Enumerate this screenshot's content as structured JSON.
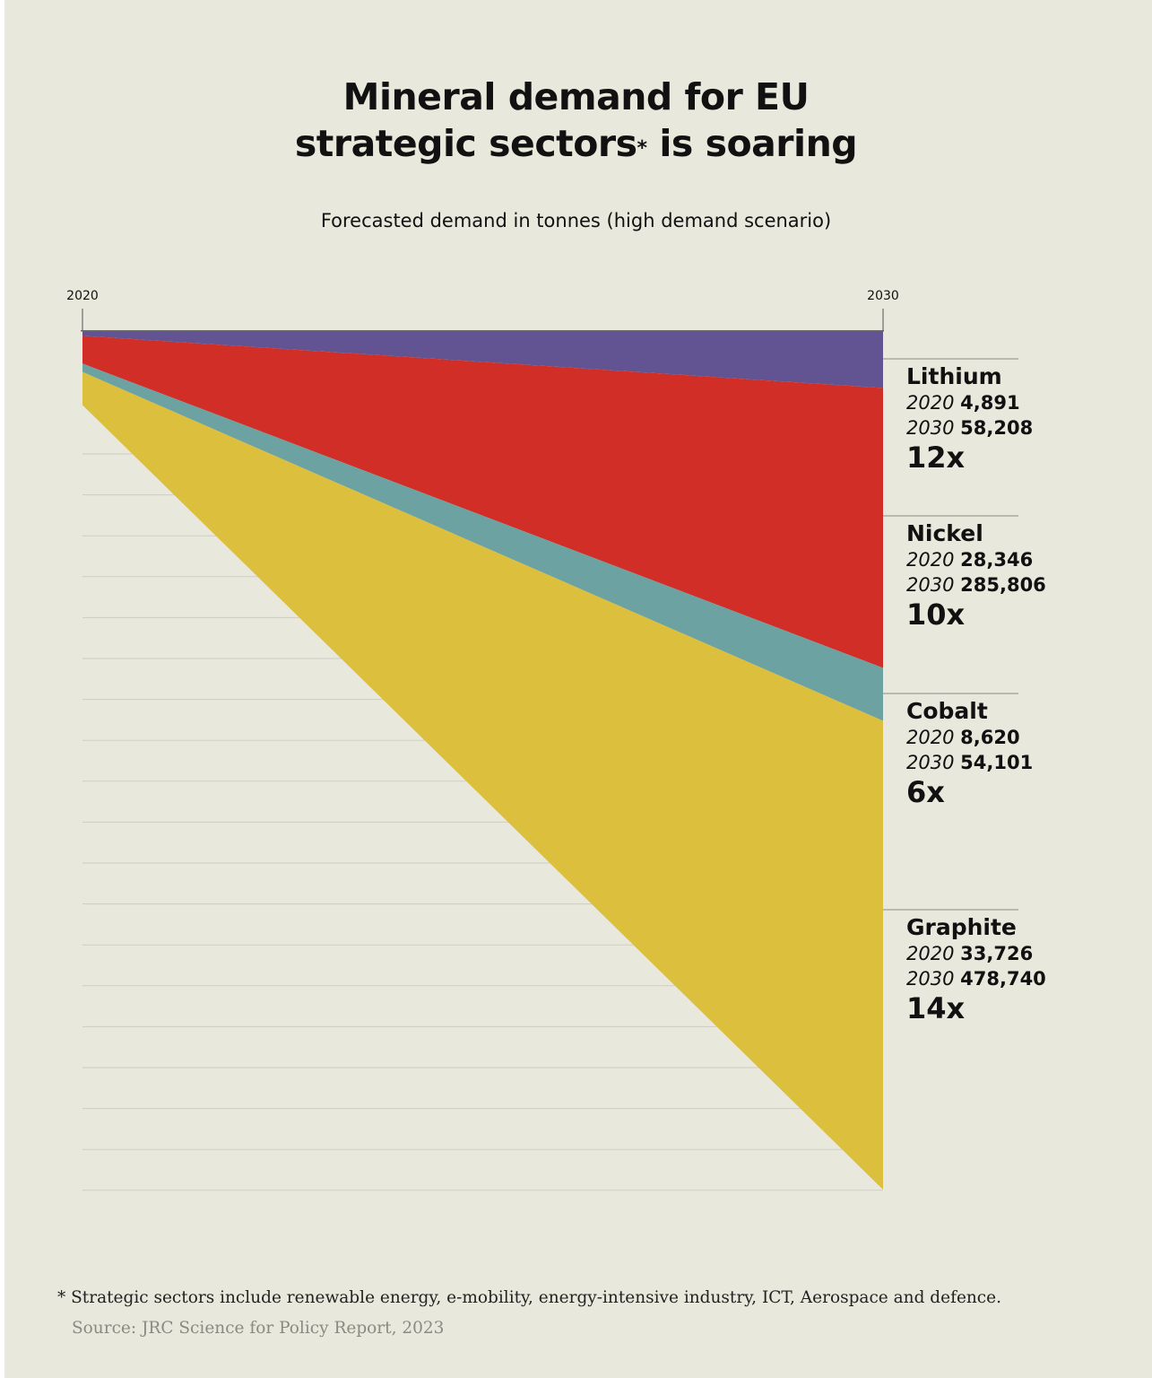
{
  "title_line1": "Mineral demand for EU",
  "title_line2_main": "strategic sectors",
  "title_asterisk": "*",
  "title_line2_end": " is soaring",
  "subtitle": "Forecasted demand in tonnes (high demand scenario)",
  "footnote": "* Strategic sectors include renewable energy, e-mobility, energy-intensive industry, ICT, Aerospace and defence.",
  "source": "Source: JRC Science for Policy Report, 2023",
  "colors": {
    "lithium": "#625493",
    "nickel": "#d12e27",
    "cobalt": "#6ca3a2",
    "graphite": "#ddbf3e",
    "background": "#e9e8dc",
    "gridline": "#cfcdc2"
  },
  "chart_data": {
    "type": "area",
    "title": "Mineral demand for EU strategic sectors* is soaring",
    "subtitle": "Forecasted demand in tonnes (high demand scenario)",
    "x": [
      "2020",
      "2030"
    ],
    "stacking": "stacked, downward from top",
    "ylim": [
      0,
      876855
    ],
    "series": [
      {
        "name": "Lithium",
        "values": [
          4891,
          58208
        ],
        "label_2020": "2020",
        "value_2020": "4,891",
        "label_2030": "2030",
        "value_2030": "58,208",
        "multiplier": "12x",
        "color": "#625493"
      },
      {
        "name": "Nickel",
        "values": [
          28346,
          285806
        ],
        "label_2020": "2020",
        "value_2020": "28,346",
        "label_2030": "2030",
        "value_2030": "285,806",
        "multiplier": "10x",
        "color": "#d12e27"
      },
      {
        "name": "Cobalt",
        "values": [
          8620,
          54101
        ],
        "label_2020": "2020",
        "value_2020": "8,620",
        "label_2030": "2030",
        "value_2030": "54,101",
        "multiplier": "6x",
        "color": "#6ca3a2"
      },
      {
        "name": "Graphite",
        "values": [
          33726,
          478740
        ],
        "label_2020": "2020",
        "value_2020": "33,726",
        "label_2030": "2030",
        "value_2030": "478,740",
        "multiplier": "14x",
        "color": "#ddbf3e"
      }
    ]
  }
}
